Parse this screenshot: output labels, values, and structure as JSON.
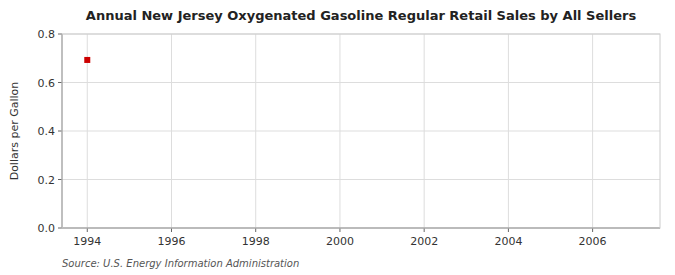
{
  "chart_data": {
    "type": "scatter",
    "title": "Annual New Jersey Oxygenated Gasoline Regular Retail Sales by All Sellers",
    "ylabel": "Dollars per Gallon",
    "source": "Source: U.S. Energy Information Administration",
    "x": [
      1994
    ],
    "values": [
      0.693
    ],
    "color": "#cc0000",
    "marker": "square",
    "xlim": [
      1993.4,
      2007.6
    ],
    "ylim": [
      0.0,
      0.8
    ],
    "xticks": [
      1994,
      1996,
      1998,
      2000,
      2002,
      2004,
      2006
    ],
    "yticks": [
      {
        "value": 0.0,
        "label": "0.0"
      },
      0.2,
      0.4,
      0.6,
      0.8
    ],
    "grid": true
  }
}
